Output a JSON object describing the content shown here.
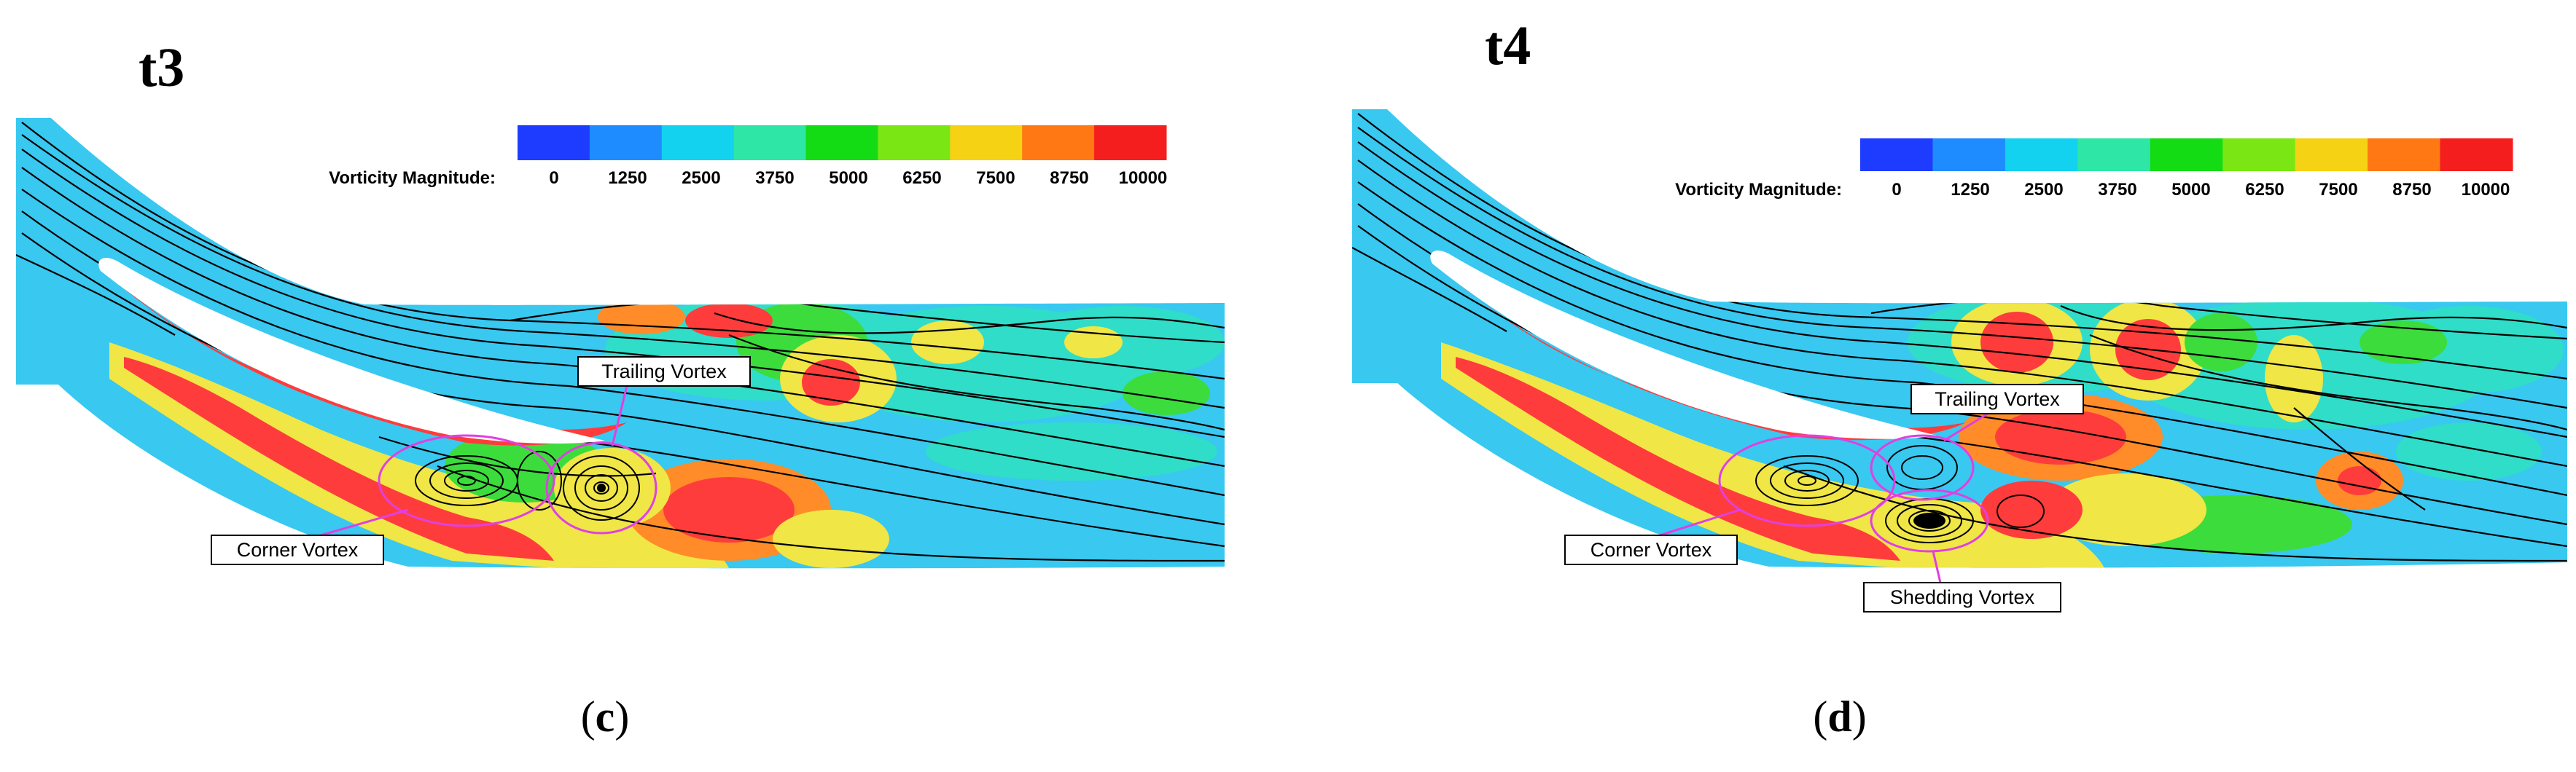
{
  "colorbar": {
    "title": "Vorticity Magnitude:",
    "ticks": [
      "0",
      "1250",
      "2500",
      "3750",
      "5000",
      "6250",
      "7500",
      "8750",
      "10000"
    ],
    "colors": [
      "#1e3cff",
      "#1e8cff",
      "#12d2f0",
      "#2ee6a6",
      "#14dc14",
      "#7ae614",
      "#f5d214",
      "#ff7814",
      "#f51e1e"
    ]
  },
  "field_colors": {
    "background": "#38c8f0",
    "low": "#30ddc8",
    "mid": "#3cdc3c",
    "high1": "#f0e646",
    "high2": "#ff8c28",
    "peak": "#ff3c3c"
  },
  "panels": [
    {
      "time_label": "t3",
      "caption": "c",
      "annotations": [
        "Trailing Vortex",
        "Corner Vortex"
      ]
    },
    {
      "time_label": "t4",
      "caption": "d",
      "annotations": [
        "Trailing Vortex",
        "Corner Vortex",
        "Shedding Vortex"
      ]
    }
  ]
}
